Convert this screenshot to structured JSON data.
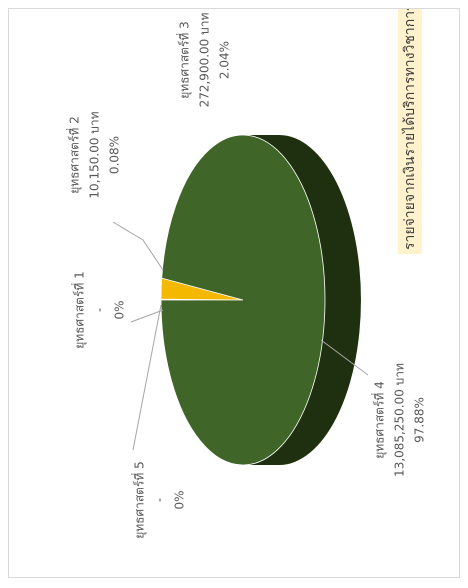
{
  "chart_data": {
    "type": "pie",
    "title": "รายจ่ายจากเงินรายได้บริการทางวิชาการ",
    "categories": [
      "ยุทธศาสตร์ที่ 1",
      "ยุทธศาสตร์ที่ 2",
      "ยุทธศาสตร์ที่ 3",
      "ยุทธศาสตร์ที่ 4",
      "ยุทธศาสตร์ที่ 5"
    ],
    "values": [
      0,
      0.08,
      2.04,
      97.88,
      0
    ],
    "value_labels": [
      "0%",
      "0.08%",
      "2.04%",
      "97.88%",
      "0%"
    ],
    "amount_labels": [
      "-",
      "10,150.00  บาท",
      "272,900.00  บาท",
      "13,085,250.00  บาท",
      "-"
    ],
    "colors": [
      "#4472c4",
      "#a5a5a5",
      "#f5b800",
      "#3f6628",
      "#5b9bd5"
    ]
  }
}
